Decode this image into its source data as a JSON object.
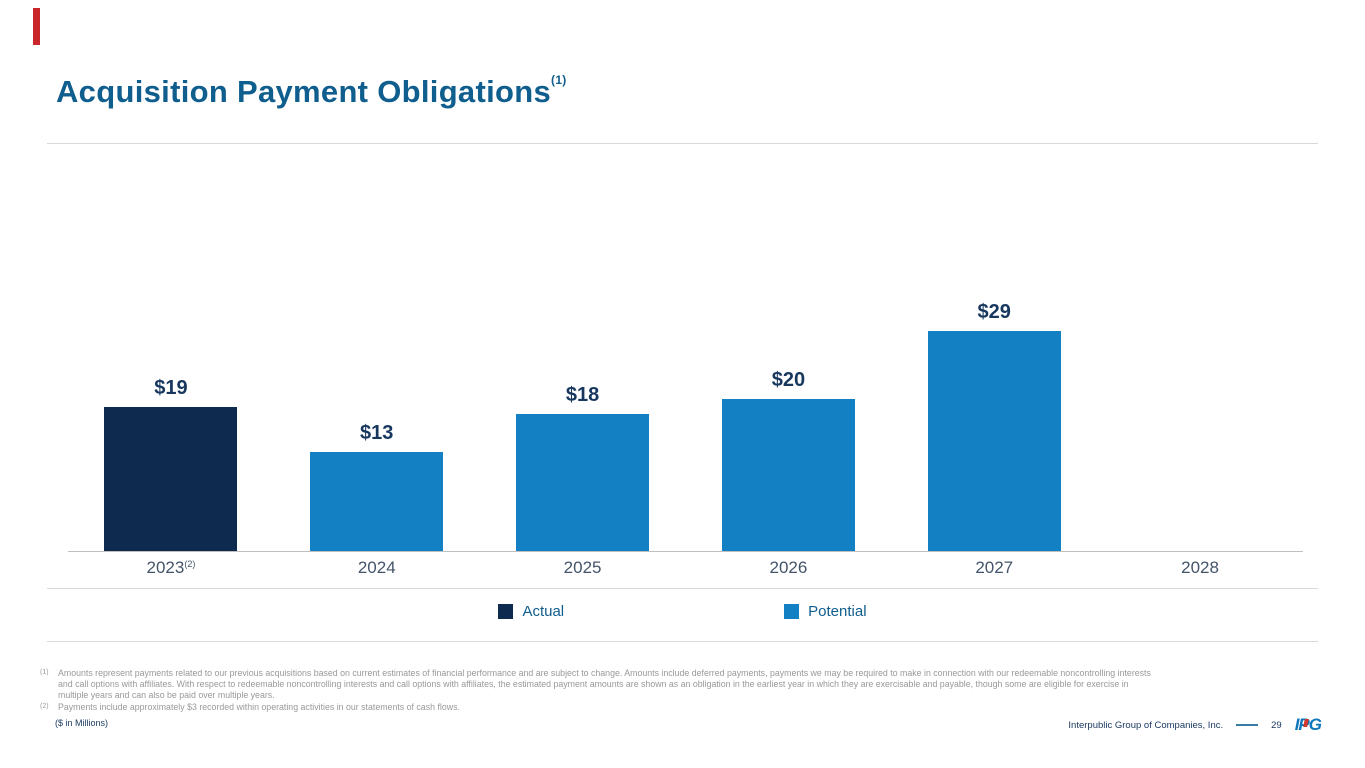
{
  "slide": {
    "title": "Acquisition Payment Obligations",
    "title_superscript": "(1)"
  },
  "colors": {
    "accent_red": "#C9262C",
    "title_blue": "#0F5E8E",
    "actual_bar": "#0E2A4F",
    "potential_bar": "#1380C4",
    "value_label": "#17375E",
    "axis_label": "#44546A",
    "footnote_gray": "#999999",
    "footer_blue": "#17375E"
  },
  "chart_data": {
    "type": "bar",
    "title": "Acquisition Payment Obligations",
    "categories": [
      "2023",
      "2024",
      "2025",
      "2026",
      "2027",
      "2028"
    ],
    "category_notes": [
      "(2)",
      "",
      "",
      "",
      "",
      ""
    ],
    "series": [
      {
        "name": "Actual",
        "values": [
          19,
          null,
          null,
          null,
          null,
          null
        ]
      },
      {
        "name": "Potential",
        "values": [
          null,
          13,
          18,
          20,
          29,
          null
        ]
      }
    ],
    "data_labels": [
      "$19",
      "$13",
      "$18",
      "$20",
      "$29",
      ""
    ],
    "series_colors": {
      "Actual": "#0E2A4F",
      "Potential": "#1380C4"
    },
    "legend": [
      {
        "label": "Actual",
        "color": "#0E2A4F"
      },
      {
        "label": "Potential",
        "color": "#1380C4"
      }
    ],
    "legend_position": "bottom",
    "xlabel": "",
    "ylabel": "",
    "ylim": [
      0,
      29
    ],
    "grid": false,
    "units": "$ in Millions"
  },
  "footnotes": [
    {
      "marker": "(1)",
      "text": "Amounts represent payments related to our previous acquisitions based on current estimates of financial performance and are subject to change. Amounts include deferred payments, payments we may be required to make in connection with our redeemable noncontrolling interests and call options with affiliates. With respect to redeemable noncontrolling interests and call options with affiliates, the estimated payment amounts are shown as an obligation in the earliest year in which they are exercisable and payable, though some are eligible for exercise in multiple years and can also be paid over multiple years."
    },
    {
      "marker": "(2)",
      "text": "Payments include approximately $3 recorded within operating activities in our statements of cash flows."
    }
  ],
  "footer": {
    "unit_note": "($ in Millions)",
    "company": "Interpublic Group of Companies, Inc.",
    "page": "29",
    "logo": "IPG"
  }
}
